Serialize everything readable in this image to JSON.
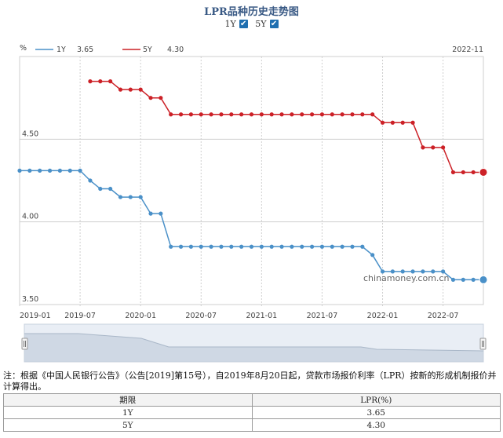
{
  "header": {
    "title": "LPR品种历史走势图",
    "toggles": [
      {
        "label": "1Y",
        "checked": true
      },
      {
        "label": "5Y",
        "checked": true
      }
    ]
  },
  "chart_data": {
    "type": "line",
    "ylabel": "%",
    "ylim": [
      3.5,
      5.0
    ],
    "yticks": [
      "3.50",
      "4.00",
      "4.50"
    ],
    "xticks": [
      "2019-01",
      "2019-07",
      "2020-01",
      "2020-07",
      "2021-01",
      "2021-07",
      "2022-01",
      "2022-07"
    ],
    "date_label": "2022-11",
    "x": [
      "2019-01",
      "2019-02",
      "2019-03",
      "2019-04",
      "2019-05",
      "2019-06",
      "2019-07",
      "2019-08",
      "2019-09",
      "2019-10",
      "2019-11",
      "2019-12",
      "2020-01",
      "2020-02",
      "2020-03",
      "2020-04",
      "2020-05",
      "2020-06",
      "2020-07",
      "2020-08",
      "2020-09",
      "2020-10",
      "2020-11",
      "2020-12",
      "2021-01",
      "2021-02",
      "2021-03",
      "2021-04",
      "2021-05",
      "2021-06",
      "2021-07",
      "2021-08",
      "2021-09",
      "2021-10",
      "2021-11",
      "2021-12",
      "2022-01",
      "2022-02",
      "2022-03",
      "2022-04",
      "2022-05",
      "2022-06",
      "2022-07",
      "2022-08",
      "2022-09",
      "2022-10",
      "2022-11"
    ],
    "series": [
      {
        "name": "1Y",
        "latest": "3.65",
        "color": "#4a90c8",
        "values": [
          4.31,
          4.31,
          4.31,
          4.31,
          4.31,
          4.31,
          4.31,
          4.25,
          4.2,
          4.2,
          4.15,
          4.15,
          4.15,
          4.05,
          4.05,
          3.85,
          3.85,
          3.85,
          3.85,
          3.85,
          3.85,
          3.85,
          3.85,
          3.85,
          3.85,
          3.85,
          3.85,
          3.85,
          3.85,
          3.85,
          3.85,
          3.85,
          3.85,
          3.85,
          3.85,
          3.8,
          3.7,
          3.7,
          3.7,
          3.7,
          3.7,
          3.7,
          3.7,
          3.65,
          3.65,
          3.65,
          3.65
        ]
      },
      {
        "name": "5Y",
        "latest": "4.30",
        "color": "#cc2127",
        "values": [
          null,
          null,
          null,
          null,
          null,
          null,
          null,
          4.85,
          4.85,
          4.85,
          4.8,
          4.8,
          4.8,
          4.75,
          4.75,
          4.65,
          4.65,
          4.65,
          4.65,
          4.65,
          4.65,
          4.65,
          4.65,
          4.65,
          4.65,
          4.65,
          4.65,
          4.65,
          4.65,
          4.65,
          4.65,
          4.65,
          4.65,
          4.65,
          4.65,
          4.65,
          4.6,
          4.6,
          4.6,
          4.6,
          4.45,
          4.45,
          4.45,
          4.3,
          4.3,
          4.3,
          4.3
        ]
      }
    ]
  },
  "watermark": "chinamoney.com.cn",
  "note": "注：根据《中国人民银行公告》（公告[2019]第15号），自2019年8月20日起，贷款市场报价利率（LPR）按新的形成机制报价并计算得出。",
  "table": {
    "headers": [
      "期限",
      "LPR(%)"
    ],
    "rows": [
      [
        "1Y",
        "3.65"
      ],
      [
        "5Y",
        "4.30"
      ]
    ]
  }
}
